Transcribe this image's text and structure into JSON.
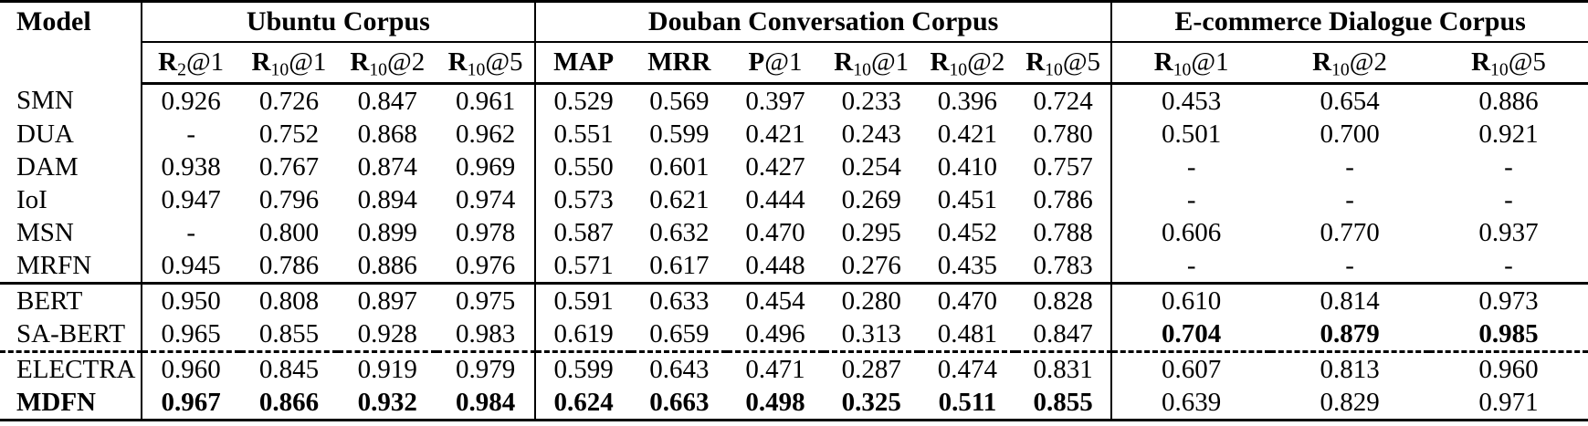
{
  "table": {
    "model_header": "Model",
    "groups": [
      {
        "label": "Ubuntu Corpus",
        "cols": 4
      },
      {
        "label": "Douban Conversation Corpus",
        "cols": 6
      },
      {
        "label": "E-commerce Dialogue Corpus",
        "cols": 3
      }
    ],
    "metrics": [
      {
        "pre": "R",
        "sub": "2",
        "post": "@1"
      },
      {
        "pre": "R",
        "sub": "10",
        "post": "@1"
      },
      {
        "pre": "R",
        "sub": "10",
        "post": "@2"
      },
      {
        "pre": "R",
        "sub": "10",
        "post": "@5"
      },
      {
        "pre": "MAP",
        "sub": "",
        "post": ""
      },
      {
        "pre": "MRR",
        "sub": "",
        "post": ""
      },
      {
        "pre": "P",
        "sub": "",
        "post": "@1"
      },
      {
        "pre": "R",
        "sub": "10",
        "post": "@1"
      },
      {
        "pre": "R",
        "sub": "10",
        "post": "@2"
      },
      {
        "pre": "R",
        "sub": "10",
        "post": "@5"
      },
      {
        "pre": "R",
        "sub": "10",
        "post": "@1"
      },
      {
        "pre": "R",
        "sub": "10",
        "post": "@2"
      },
      {
        "pre": "R",
        "sub": "10",
        "post": "@5"
      }
    ],
    "group_start_indices": [
      0,
      4,
      10
    ],
    "rows": [
      {
        "model": "SMN",
        "model_bold": false,
        "separator": "none",
        "values": [
          "0.926",
          "0.726",
          "0.847",
          "0.961",
          "0.529",
          "0.569",
          "0.397",
          "0.233",
          "0.396",
          "0.724",
          "0.453",
          "0.654",
          "0.886"
        ],
        "bold": []
      },
      {
        "model": "DUA",
        "model_bold": false,
        "separator": "none",
        "values": [
          "-",
          "0.752",
          "0.868",
          "0.962",
          "0.551",
          "0.599",
          "0.421",
          "0.243",
          "0.421",
          "0.780",
          "0.501",
          "0.700",
          "0.921"
        ],
        "bold": []
      },
      {
        "model": "DAM",
        "model_bold": false,
        "separator": "none",
        "values": [
          "0.938",
          "0.767",
          "0.874",
          "0.969",
          "0.550",
          "0.601",
          "0.427",
          "0.254",
          "0.410",
          "0.757",
          "-",
          "-",
          "-"
        ],
        "bold": []
      },
      {
        "model": "IoI",
        "model_bold": false,
        "separator": "none",
        "values": [
          "0.947",
          "0.796",
          "0.894",
          "0.974",
          "0.573",
          "0.621",
          "0.444",
          "0.269",
          "0.451",
          "0.786",
          "-",
          "-",
          "-"
        ],
        "bold": []
      },
      {
        "model": "MSN",
        "model_bold": false,
        "separator": "none",
        "values": [
          "-",
          "0.800",
          "0.899",
          "0.978",
          "0.587",
          "0.632",
          "0.470",
          "0.295",
          "0.452",
          "0.788",
          "0.606",
          "0.770",
          "0.937"
        ],
        "bold": []
      },
      {
        "model": "MRFN",
        "model_bold": false,
        "separator": "none",
        "values": [
          "0.945",
          "0.786",
          "0.886",
          "0.976",
          "0.571",
          "0.617",
          "0.448",
          "0.276",
          "0.435",
          "0.783",
          "-",
          "-",
          "-"
        ],
        "bold": []
      },
      {
        "model": "BERT",
        "model_bold": false,
        "separator": "solid",
        "values": [
          "0.950",
          "0.808",
          "0.897",
          "0.975",
          "0.591",
          "0.633",
          "0.454",
          "0.280",
          "0.470",
          "0.828",
          "0.610",
          "0.814",
          "0.973"
        ],
        "bold": []
      },
      {
        "model": "SA-BERT",
        "model_bold": false,
        "separator": "none",
        "values": [
          "0.965",
          "0.855",
          "0.928",
          "0.983",
          "0.619",
          "0.659",
          "0.496",
          "0.313",
          "0.481",
          "0.847",
          "0.704",
          "0.879",
          "0.985"
        ],
        "bold": [
          10,
          11,
          12
        ]
      },
      {
        "model": "ELECTRA",
        "model_bold": false,
        "separator": "dashed",
        "values": [
          "0.960",
          "0.845",
          "0.919",
          "0.979",
          "0.599",
          "0.643",
          "0.471",
          "0.287",
          "0.474",
          "0.831",
          "0.607",
          "0.813",
          "0.960"
        ],
        "bold": []
      },
      {
        "model": "MDFN",
        "model_bold": true,
        "separator": "none",
        "values": [
          "0.967",
          "0.866",
          "0.932",
          "0.984",
          "0.624",
          "0.663",
          "0.498",
          "0.325",
          "0.511",
          "0.855",
          "0.639",
          "0.829",
          "0.971"
        ],
        "bold": [
          0,
          1,
          2,
          3,
          4,
          5,
          6,
          7,
          8,
          9
        ]
      }
    ]
  }
}
